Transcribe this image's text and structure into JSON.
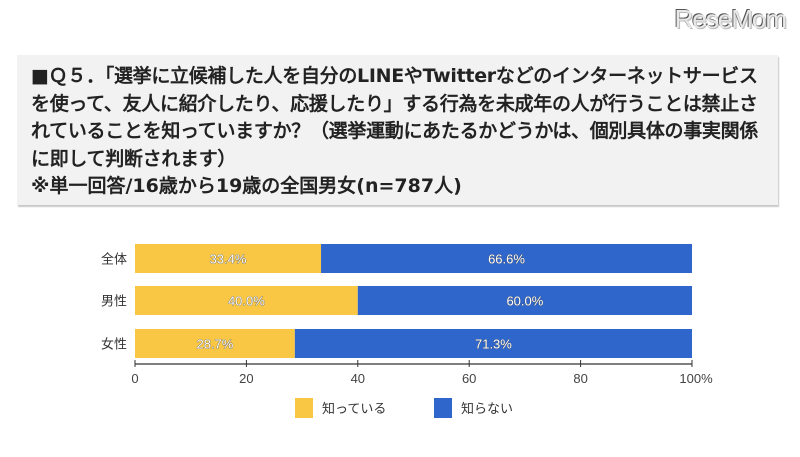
{
  "logo": "ReseMom",
  "question": {
    "text": "■Ｑ５．「選挙に立候補した人を自分のLINEやTwitterなどのインターネットサービスを使って、友人に紹介したり、応援したり」する行為を未成年の人が行うことは禁止されていることを知っていますか？（選挙運動にあたるかどうかは、個別具体の事実関係に即して判断されます）",
    "note": "※単一回答/16歳から19歳の全国男女(n=787人)"
  },
  "chart_data": {
    "type": "bar",
    "orientation": "horizontal",
    "stacked": true,
    "categories": [
      "全体",
      "男性",
      "女性"
    ],
    "series": [
      {
        "name": "知っている",
        "color": "#f9c744",
        "values": [
          33.4,
          40.0,
          28.7
        ],
        "labels": [
          "33.4%",
          "40.0%",
          "28.7%"
        ]
      },
      {
        "name": "知らない",
        "color": "#2f66cc",
        "values": [
          66.6,
          60.0,
          71.3
        ],
        "labels": [
          "66.6%",
          "60.0%",
          "71.3%"
        ]
      }
    ],
    "xlim": [
      0,
      100
    ],
    "xticks": [
      0,
      20,
      40,
      60,
      80,
      100
    ],
    "xtick_labels": [
      "0",
      "20",
      "40",
      "60",
      "80",
      "100%"
    ],
    "legend": "bottom",
    "grid": false
  }
}
